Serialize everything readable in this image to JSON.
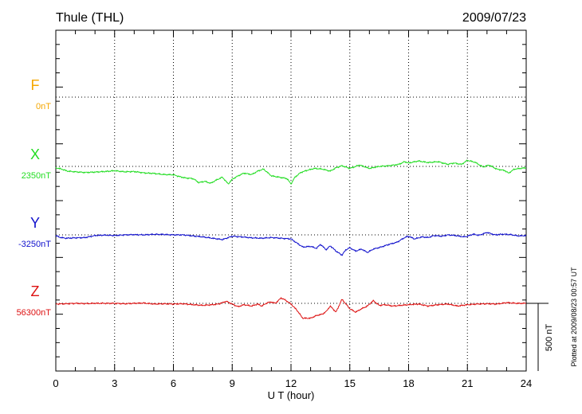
{
  "header": {
    "station": "Thule (THL)",
    "date": "2009/07/23"
  },
  "footnote": "Plotted at 2009/08/23 00:57 UT",
  "chart_data": {
    "type": "line",
    "xlabel": "U T (hour)",
    "xlim": [
      0,
      24
    ],
    "xticks": [
      "0",
      "3",
      "6",
      "9",
      "12",
      "15",
      "18",
      "21",
      "24"
    ],
    "grid": true,
    "scale_bar": {
      "label": "500 nT",
      "value_nT": 500
    },
    "channels": [
      {
        "key": "F",
        "name": "F",
        "baseline": "0nT",
        "color": "#f5a700",
        "values": []
      },
      {
        "key": "X",
        "name": "X",
        "baseline": "2350nT",
        "color": "#22dd22",
        "values": [
          [
            0,
            -10
          ],
          [
            0.3,
            -20
          ],
          [
            0.6,
            -35
          ],
          [
            1,
            -40
          ],
          [
            1.5,
            -45
          ],
          [
            2,
            -42
          ],
          [
            2.5,
            -38
          ],
          [
            3,
            -32
          ],
          [
            3.5,
            -40
          ],
          [
            4,
            -38
          ],
          [
            4.5,
            -48
          ],
          [
            5,
            -52
          ],
          [
            5.5,
            -60
          ],
          [
            6,
            -62
          ],
          [
            6.3,
            -75
          ],
          [
            6.6,
            -85
          ],
          [
            7,
            -90
          ],
          [
            7.3,
            -120
          ],
          [
            7.6,
            -110
          ],
          [
            7.9,
            -125
          ],
          [
            8.2,
            -100
          ],
          [
            8.5,
            -80
          ],
          [
            8.8,
            -130
          ],
          [
            9,
            -95
          ],
          [
            9.3,
            -70
          ],
          [
            9.6,
            -50
          ],
          [
            10,
            -60
          ],
          [
            10.3,
            -35
          ],
          [
            10.6,
            -20
          ],
          [
            11,
            -70
          ],
          [
            11.4,
            -80
          ],
          [
            11.8,
            -90
          ],
          [
            12,
            -130
          ],
          [
            12.2,
            -80
          ],
          [
            12.5,
            -45
          ],
          [
            12.8,
            -30
          ],
          [
            13.2,
            -15
          ],
          [
            13.6,
            -20
          ],
          [
            14,
            -35
          ],
          [
            14.3,
            -10
          ],
          [
            14.6,
            5
          ],
          [
            15,
            -15
          ],
          [
            15.5,
            10
          ],
          [
            16,
            -15
          ],
          [
            16.5,
            0
          ],
          [
            17,
            5
          ],
          [
            17.5,
            15
          ],
          [
            17.8,
            35
          ],
          [
            18,
            25
          ],
          [
            18.5,
            40
          ],
          [
            19,
            28
          ],
          [
            19.5,
            35
          ],
          [
            20,
            15
          ],
          [
            20.3,
            25
          ],
          [
            20.7,
            15
          ],
          [
            21,
            45
          ],
          [
            21.4,
            30
          ],
          [
            21.8,
            -5
          ],
          [
            22.1,
            10
          ],
          [
            22.5,
            -20
          ],
          [
            22.9,
            -30
          ],
          [
            23.1,
            -50
          ],
          [
            23.4,
            -20
          ],
          [
            23.7,
            -15
          ],
          [
            24,
            -10
          ]
        ]
      },
      {
        "key": "Y",
        "name": "Y",
        "baseline": "-3250nT",
        "color": "#1010cc",
        "values": [
          [
            0,
            -5
          ],
          [
            0.2,
            -18
          ],
          [
            0.5,
            -25
          ],
          [
            1,
            -22
          ],
          [
            1.5,
            -20
          ],
          [
            2,
            -5
          ],
          [
            2.5,
            -2
          ],
          [
            3,
            -5
          ],
          [
            3.5,
            0
          ],
          [
            4,
            2
          ],
          [
            4.5,
            0
          ],
          [
            5,
            4
          ],
          [
            5.5,
            3
          ],
          [
            6,
            0
          ],
          [
            6.5,
            0
          ],
          [
            7,
            -8
          ],
          [
            7.5,
            -15
          ],
          [
            8,
            -25
          ],
          [
            8.5,
            -35
          ],
          [
            8.8,
            -20
          ],
          [
            9,
            -10
          ],
          [
            9.5,
            -15
          ],
          [
            10,
            -22
          ],
          [
            10.5,
            -25
          ],
          [
            11,
            -20
          ],
          [
            11.5,
            -25
          ],
          [
            12,
            -30
          ],
          [
            12.3,
            -60
          ],
          [
            12.6,
            -90
          ],
          [
            13,
            -85
          ],
          [
            13.3,
            -100
          ],
          [
            13.5,
            -70
          ],
          [
            13.8,
            -110
          ],
          [
            14,
            -80
          ],
          [
            14.3,
            -120
          ],
          [
            14.6,
            -150
          ],
          [
            14.8,
            -110
          ],
          [
            15,
            -95
          ],
          [
            15.3,
            -120
          ],
          [
            15.6,
            -105
          ],
          [
            15.9,
            -130
          ],
          [
            16.2,
            -105
          ],
          [
            16.6,
            -90
          ],
          [
            17,
            -70
          ],
          [
            17.4,
            -55
          ],
          [
            17.8,
            -20
          ],
          [
            18,
            -10
          ],
          [
            18.3,
            -30
          ],
          [
            18.7,
            -15
          ],
          [
            19,
            -20
          ],
          [
            19.3,
            -5
          ],
          [
            19.7,
            -10
          ],
          [
            20,
            0
          ],
          [
            20.4,
            -5
          ],
          [
            20.8,
            -15
          ],
          [
            21,
            -10
          ],
          [
            21.3,
            5
          ],
          [
            21.6,
            -3
          ],
          [
            22,
            18
          ],
          [
            22.4,
            0
          ],
          [
            22.8,
            5
          ],
          [
            23.2,
            2
          ],
          [
            23.6,
            -8
          ],
          [
            24,
            -5
          ]
        ]
      },
      {
        "key": "Z",
        "name": "Z",
        "baseline": "56300nT",
        "color": "#dd1111",
        "values": [
          [
            0,
            -5
          ],
          [
            0.5,
            -3
          ],
          [
            1,
            0
          ],
          [
            1.5,
            -2
          ],
          [
            2,
            0
          ],
          [
            2.5,
            0
          ],
          [
            3,
            0
          ],
          [
            3.5,
            -3
          ],
          [
            4,
            0
          ],
          [
            4.5,
            2
          ],
          [
            5,
            -5
          ],
          [
            5.5,
            -3
          ],
          [
            6,
            -5
          ],
          [
            6.5,
            -3
          ],
          [
            7,
            -10
          ],
          [
            7.5,
            -15
          ],
          [
            8,
            -10
          ],
          [
            8.3,
            -5
          ],
          [
            8.7,
            15
          ],
          [
            9,
            -5
          ],
          [
            9.3,
            -25
          ],
          [
            9.6,
            -10
          ],
          [
            10,
            -20
          ],
          [
            10.3,
            -5
          ],
          [
            10.5,
            -20
          ],
          [
            10.8,
            5
          ],
          [
            11,
            10
          ],
          [
            11.2,
            0
          ],
          [
            11.5,
            40
          ],
          [
            11.7,
            25
          ],
          [
            12,
            -5
          ],
          [
            12.3,
            -50
          ],
          [
            12.6,
            -110
          ],
          [
            13,
            -110
          ],
          [
            13.3,
            -90
          ],
          [
            13.6,
            -80
          ],
          [
            13.8,
            -60
          ],
          [
            14,
            -20
          ],
          [
            14.3,
            -65
          ],
          [
            14.6,
            30
          ],
          [
            15,
            -40
          ],
          [
            15.3,
            -65
          ],
          [
            15.6,
            -40
          ],
          [
            15.9,
            -20
          ],
          [
            16.2,
            20
          ],
          [
            16.5,
            -15
          ],
          [
            16.8,
            -10
          ],
          [
            17.2,
            -20
          ],
          [
            17.6,
            -15
          ],
          [
            18,
            -10
          ],
          [
            18.5,
            -5
          ],
          [
            19,
            -20
          ],
          [
            19.5,
            -10
          ],
          [
            20,
            -5
          ],
          [
            20.5,
            -20
          ],
          [
            21,
            -10
          ],
          [
            21.5,
            -5
          ],
          [
            22,
            -3
          ],
          [
            22.5,
            -5
          ],
          [
            23,
            5
          ],
          [
            23.5,
            0
          ],
          [
            24,
            0
          ]
        ]
      }
    ]
  }
}
